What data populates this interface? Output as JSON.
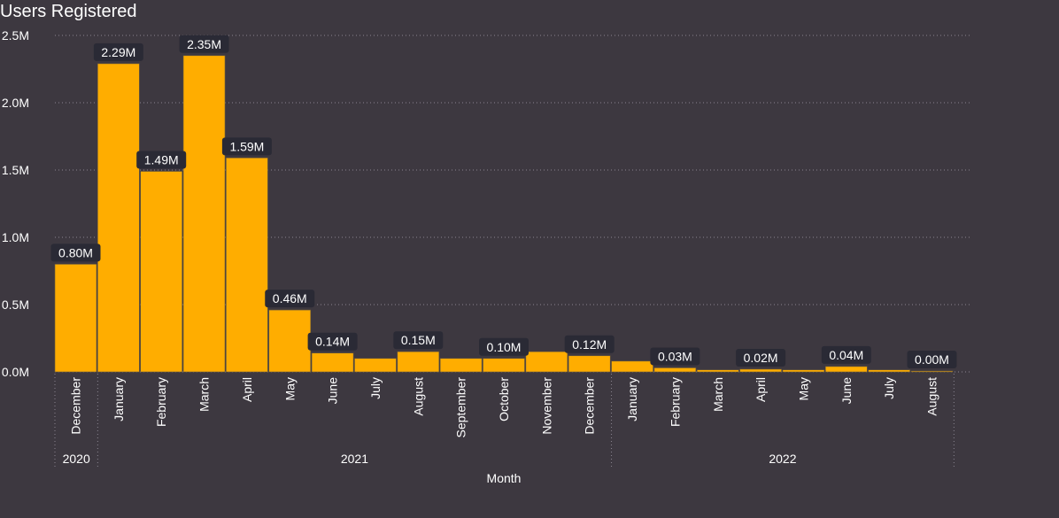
{
  "chart_data": {
    "type": "bar",
    "title": "Users Registered",
    "xlabel": "Month",
    "ylabel": "",
    "ylim": [
      0,
      2500000
    ],
    "y_ticks": [
      {
        "value": 0,
        "label": "0.0M"
      },
      {
        "value": 500000,
        "label": "0.5M"
      },
      {
        "value": 1000000,
        "label": "1.0M"
      },
      {
        "value": 1500000,
        "label": "1.5M"
      },
      {
        "value": 2000000,
        "label": "2.0M"
      },
      {
        "value": 2500000,
        "label": "2.5M"
      }
    ],
    "grid": true,
    "legend": "none",
    "categories": [
      {
        "month": "December",
        "year": "2020",
        "value": 800000,
        "label": "0.80M"
      },
      {
        "month": "January",
        "year": "2021",
        "value": 2290000,
        "label": "2.29M"
      },
      {
        "month": "February",
        "year": "2021",
        "value": 1490000,
        "label": "1.49M"
      },
      {
        "month": "March",
        "year": "2021",
        "value": 2350000,
        "label": "2.35M"
      },
      {
        "month": "April",
        "year": "2021",
        "value": 1590000,
        "label": "1.59M"
      },
      {
        "month": "May",
        "year": "2021",
        "value": 460000,
        "label": "0.46M"
      },
      {
        "month": "June",
        "year": "2021",
        "value": 140000,
        "label": "0.14M"
      },
      {
        "month": "July",
        "year": "2021",
        "value": 100000,
        "label": ""
      },
      {
        "month": "August",
        "year": "2021",
        "value": 150000,
        "label": "0.15M"
      },
      {
        "month": "September",
        "year": "2021",
        "value": 100000,
        "label": ""
      },
      {
        "month": "October",
        "year": "2021",
        "value": 100000,
        "label": "0.10M"
      },
      {
        "month": "November",
        "year": "2021",
        "value": 150000,
        "label": ""
      },
      {
        "month": "December",
        "year": "2021",
        "value": 120000,
        "label": "0.12M"
      },
      {
        "month": "January",
        "year": "2022",
        "value": 80000,
        "label": ""
      },
      {
        "month": "February",
        "year": "2022",
        "value": 30000,
        "label": "0.03M"
      },
      {
        "month": "March",
        "year": "2022",
        "value": 15000,
        "label": ""
      },
      {
        "month": "April",
        "year": "2022",
        "value": 20000,
        "label": "0.02M"
      },
      {
        "month": "May",
        "year": "2022",
        "value": 15000,
        "label": ""
      },
      {
        "month": "June",
        "year": "2022",
        "value": 40000,
        "label": "0.04M"
      },
      {
        "month": "July",
        "year": "2022",
        "value": 15000,
        "label": ""
      },
      {
        "month": "August",
        "year": "2022",
        "value": 3000,
        "label": "0.00M"
      }
    ],
    "years": [
      "2020",
      "2021",
      "2022"
    ],
    "colors": {
      "bar": "#ffad00",
      "background": "#3d3840",
      "label_bg": "#2a2a35",
      "grid": "#8a8590",
      "text": "#ffffff"
    }
  }
}
